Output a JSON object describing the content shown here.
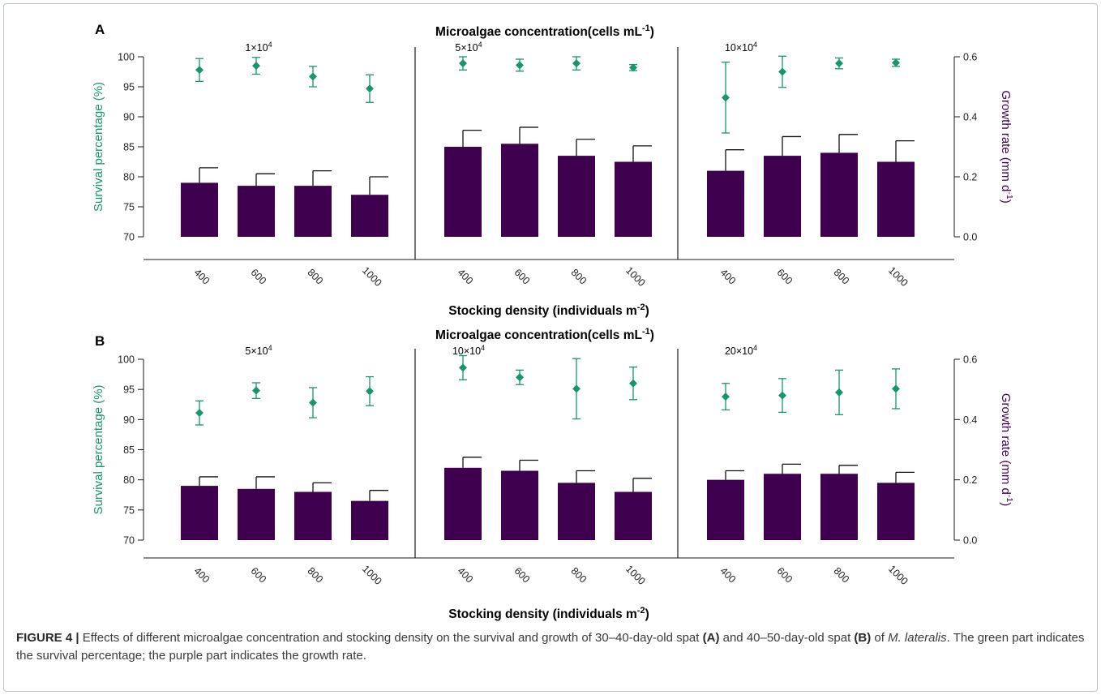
{
  "colors": {
    "survival": "#17966a",
    "growth": "#3f0050",
    "axis": "#1a1a1a",
    "text": "#222222"
  },
  "caption": {
    "label": "FIGURE 4 |",
    "t1": " Effects of different microalgae concentration and stocking density on the survival and growth of 30–40-day-old spat ",
    "a": "(A)",
    "t2": " and 40–50-day-old spat ",
    "b": "(B)",
    "t3": " of ",
    "species": "M. lateralis",
    "t4": ". The green part indicates the survival percentage; the purple part indicates the growth rate."
  },
  "chart_data": [
    {
      "panel": "A",
      "type": "bar",
      "title_text": "Microalgae concentration(cells mL",
      "title_sup": "-1",
      "title_end": ")",
      "xlabel_text": "Stocking density (individuals m",
      "xlabel_sup": "-2",
      "xlabel_end": ")",
      "ylabel_left": "Survival percentage (%)",
      "ylabel_right_text": "Growth rate (mm d",
      "ylabel_right_sup": "-1",
      "ylabel_right_end": ")",
      "ylim_left": [
        70,
        100
      ],
      "yticks_left": [
        "70",
        "75",
        "80",
        "85",
        "90",
        "95",
        "100"
      ],
      "ylim_right": [
        0,
        0.6
      ],
      "yticks_right": [
        "0.0",
        "0.2",
        "0.4",
        "0.6"
      ],
      "groups": [
        {
          "label_base": "1×10",
          "label_sup": "4",
          "categories": [
            "400",
            "600",
            "800",
            "1000"
          ],
          "growth": {
            "values": [
              0.18,
              0.17,
              0.17,
              0.14
            ],
            "err": [
              0.05,
              0.04,
              0.05,
              0.06
            ]
          },
          "survival": {
            "values": [
              97.8,
              98.5,
              96.7,
              94.7
            ],
            "err": [
              1.9,
              1.4,
              1.7,
              2.3
            ]
          }
        },
        {
          "label_base": "5×10",
          "label_sup": "4",
          "categories": [
            "400",
            "600",
            "800",
            "1000"
          ],
          "growth": {
            "values": [
              0.3,
              0.31,
              0.27,
              0.25
            ],
            "err": [
              0.055,
              0.055,
              0.055,
              0.053
            ]
          },
          "survival": {
            "values": [
              98.9,
              98.6,
              98.9,
              98.2
            ],
            "err": [
              1.1,
              1.0,
              1.1,
              0.5
            ]
          }
        },
        {
          "label_base": "10×10",
          "label_sup": "4",
          "categories": [
            "400",
            "600",
            "800",
            "1000"
          ],
          "growth": {
            "values": [
              0.22,
              0.27,
              0.28,
              0.25
            ],
            "err": [
              0.07,
              0.064,
              0.061,
              0.07
            ]
          },
          "survival": {
            "values": [
              93.2,
              97.5,
              98.9,
              99.0
            ],
            "err": [
              5.9,
              2.6,
              0.9,
              0.6
            ]
          }
        }
      ]
    },
    {
      "panel": "B",
      "type": "bar",
      "title_text": "Microalgae concentration(cells mL",
      "title_sup": "-1",
      "title_end": ")",
      "xlabel_text": "Stocking density (individuals m",
      "xlabel_sup": "-2",
      "xlabel_end": ")",
      "ylabel_left": "Survival percentage (%)",
      "ylabel_right_text": "Growth rate (mm d",
      "ylabel_right_sup": "-1",
      "ylabel_right_end": ")",
      "ylim_left": [
        70,
        100
      ],
      "yticks_left": [
        "70",
        "75",
        "80",
        "85",
        "90",
        "95",
        "100"
      ],
      "ylim_right": [
        0,
        0.6
      ],
      "yticks_right": [
        "0.0",
        "0.2",
        "0.4",
        "0.6"
      ],
      "groups": [
        {
          "label_base": "5×10",
          "label_sup": "4",
          "categories": [
            "400",
            "600",
            "800",
            "1000"
          ],
          "growth": {
            "values": [
              0.18,
              0.17,
              0.16,
              0.13
            ],
            "err": [
              0.03,
              0.04,
              0.03,
              0.035
            ]
          },
          "survival": {
            "values": [
              91.1,
              94.8,
              92.8,
              94.7
            ],
            "err": [
              2.0,
              1.3,
              2.5,
              2.4
            ]
          }
        },
        {
          "label_base": "10×10",
          "label_sup": "4",
          "categories": [
            "400",
            "600",
            "800",
            "1000"
          ],
          "growth": {
            "values": [
              0.24,
              0.23,
              0.19,
              0.16
            ],
            "err": [
              0.035,
              0.035,
              0.04,
              0.045
            ]
          },
          "survival": {
            "values": [
              98.6,
              97.0,
              95.1,
              96.0
            ],
            "err": [
              2.0,
              1.2,
              5.0,
              2.7
            ]
          }
        },
        {
          "label_base": "20×10",
          "label_sup": "4",
          "categories": [
            "400",
            "600",
            "800",
            "1000"
          ],
          "growth": {
            "values": [
              0.2,
              0.22,
              0.22,
              0.19
            ],
            "err": [
              0.03,
              0.032,
              0.028,
              0.035
            ]
          },
          "survival": {
            "values": [
              93.8,
              94.0,
              94.5,
              95.1
            ],
            "err": [
              2.2,
              2.8,
              3.7,
              3.3
            ]
          }
        }
      ]
    }
  ]
}
